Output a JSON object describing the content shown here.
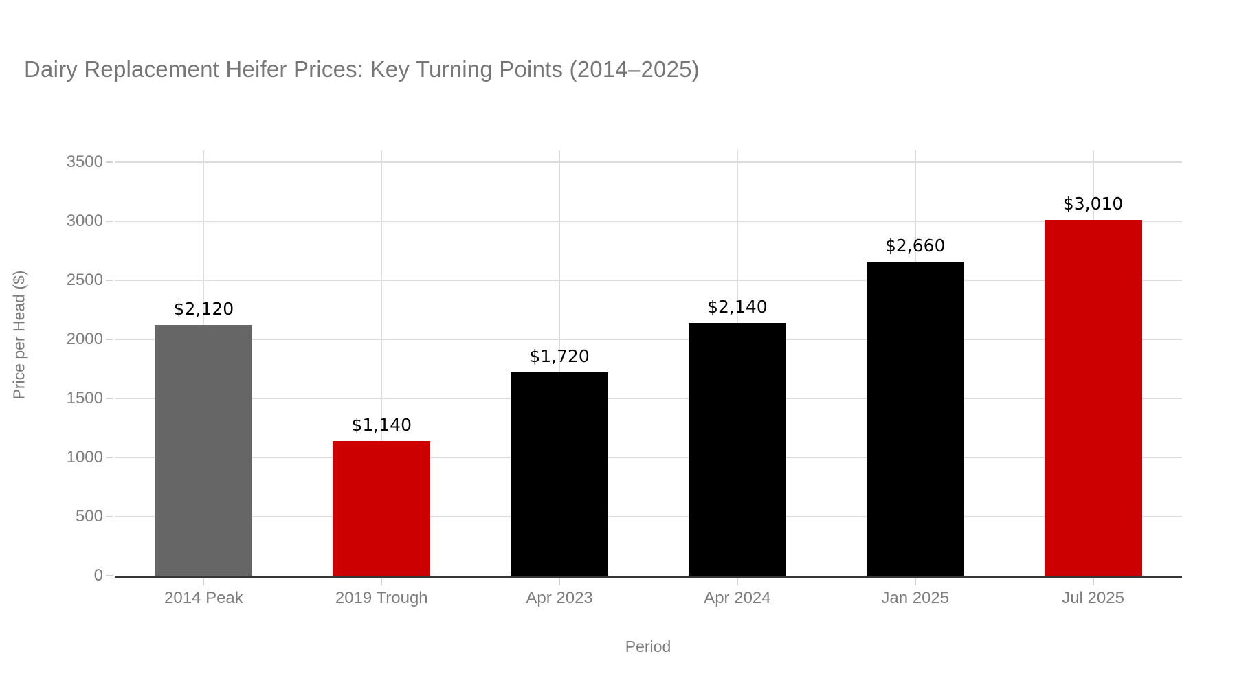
{
  "title": "Dairy Replacement Heifer Prices: Key Turning Points (2014–2025)",
  "colors": {
    "background": "#ffffff",
    "title_text": "#767676",
    "tick_text": "#7c7c7c",
    "grid": "#dcdcdc",
    "axis_line": "#363636",
    "bar_gray": "#666666",
    "bar_red": "#cc0000",
    "bar_black": "#000000",
    "value_label": "#000000"
  },
  "chart_data": {
    "type": "bar",
    "title": "Dairy Replacement Heifer Prices: Key Turning Points (2014–2025)",
    "xlabel": "Period",
    "ylabel": "Price per Head ($)",
    "categories": [
      "2014 Peak",
      "2019 Trough",
      "Apr 2023",
      "Apr 2024",
      "Jan 2025",
      "Jul 2025"
    ],
    "values": [
      2120,
      1140,
      1720,
      2140,
      2660,
      3010
    ],
    "bar_labels": [
      "$2,120",
      "$1,140",
      "$1,720",
      "$2,140",
      "$2,660",
      "$3,010"
    ],
    "bar_colors": [
      "#666666",
      "#cc0000",
      "#000000",
      "#000000",
      "#000000",
      "#cc0000"
    ],
    "yticks": [
      0,
      500,
      1000,
      1500,
      2000,
      2500,
      3000,
      3500
    ],
    "ylim": [
      0,
      3600
    ],
    "grid": true,
    "legend": "none"
  }
}
